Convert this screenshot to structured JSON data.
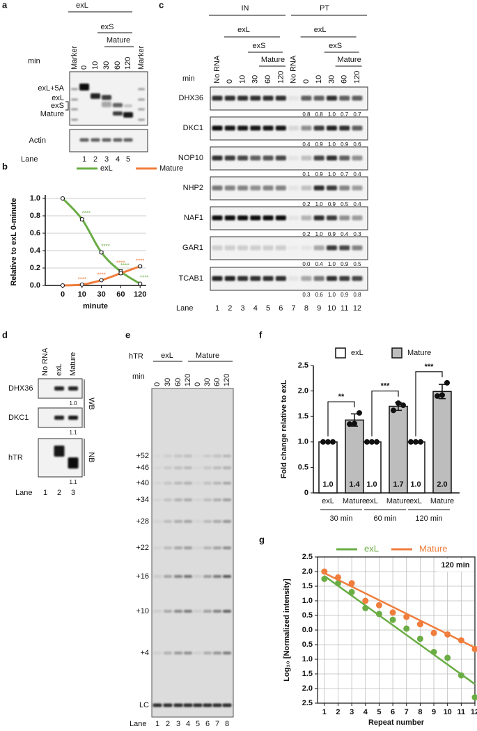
{
  "figure": {
    "labels": [
      "a",
      "b",
      "c",
      "d",
      "e",
      "f",
      "g"
    ]
  },
  "gel_a": {
    "headers": [
      "exL",
      "exS",
      "Mature"
    ],
    "min_label": "min",
    "lanes": [
      "Marker",
      "0",
      "10",
      "30",
      "60",
      "120",
      "Marker"
    ],
    "bands": [
      "exL+5A",
      "exL",
      "exS",
      "Mature"
    ],
    "loading": "Actin",
    "lane_label": "Lane",
    "lane_numbers": [
      1,
      2,
      3,
      4,
      5
    ]
  },
  "gel_c": {
    "groups": [
      "IN",
      "PT"
    ],
    "headers": [
      "exL",
      "exS",
      "Mature"
    ],
    "min_label": "min",
    "lanes": [
      "No RNA",
      "0",
      "10",
      "30",
      "60",
      "120",
      "No RNA",
      "0",
      "10",
      "30",
      "60",
      "120"
    ],
    "blots": [
      {
        "name": "DHX36",
        "quant": [
          "0.8",
          "0.8",
          "1.0",
          "0.7",
          "0.7"
        ]
      },
      {
        "name": "DKC1",
        "quant": [
          "0.4",
          "0.9",
          "1.0",
          "0.9",
          "0.6"
        ]
      },
      {
        "name": "NOP10",
        "quant": [
          "0.1",
          "0.9",
          "1.0",
          "0.7",
          "0.4"
        ]
      },
      {
        "name": "NHP2",
        "quant": [
          "0.2",
          "1.0",
          "0.9",
          "0.5",
          "0.4"
        ]
      },
      {
        "name": "NAF1",
        "quant": [
          "0.2",
          "1.0",
          "0.9",
          "0.4",
          "0.3"
        ]
      },
      {
        "name": "GAR1",
        "quant": [
          "0.0",
          "0.4",
          "1.0",
          "0.9",
          "0.5"
        ]
      },
      {
        "name": "TCAB1",
        "quant": [
          "0.3",
          "0.6",
          "1.0",
          "0.9",
          "0.8"
        ]
      }
    ],
    "lane_label": "Lane",
    "lane_numbers": [
      1,
      2,
      3,
      4,
      5,
      6,
      7,
      8,
      9,
      10,
      11,
      12
    ]
  },
  "gel_d": {
    "lanes": [
      "No RNA",
      "exL",
      "Mature"
    ],
    "blots": [
      {
        "name": "DHX36",
        "quant": "1.0"
      },
      {
        "name": "DKC1",
        "quant": "1.1"
      },
      {
        "name": "hTR",
        "quant": "1.1"
      }
    ],
    "methods": [
      "WB",
      "NB"
    ],
    "lane_label": "Lane",
    "lane_numbers": [
      1,
      2,
      3
    ]
  },
  "gel_e": {
    "rna_label": "hTR",
    "groups": [
      "exL",
      "Mature"
    ],
    "min_label": "min",
    "lanes": [
      "0",
      "30",
      "60",
      "120",
      "0",
      "30",
      "60",
      "120"
    ],
    "repeats": [
      "+52",
      "+46",
      "+40",
      "+34",
      "+28",
      "+22",
      "+16",
      "+10",
      "+4"
    ],
    "loading": "LC",
    "lane_label": "Lane",
    "lane_numbers": [
      1,
      2,
      3,
      4,
      5,
      6,
      7,
      8
    ]
  },
  "chart_data": [
    {
      "type": "line",
      "categories": [
        "0",
        "10",
        "30",
        "60",
        "120"
      ],
      "series": [
        {
          "name": "exL",
          "color": "#6aad45",
          "values": [
            1.0,
            0.76,
            0.38,
            0.16,
            0.02
          ],
          "errors": [
            0.005,
            0.015,
            0.012,
            0.02,
            0.006
          ],
          "significance": [
            null,
            "****",
            "****",
            "****",
            "****"
          ]
        },
        {
          "name": "Mature",
          "color": "#f07d3c",
          "values": [
            0.0,
            0.01,
            0.06,
            0.14,
            0.22
          ],
          "errors": [
            0.003,
            0.005,
            0.008,
            0.015,
            0.01
          ],
          "significance": [
            null,
            "****",
            "****",
            "****",
            "****"
          ]
        }
      ],
      "xlabel": "minute",
      "ylabel": "Relative to exL 0-minute",
      "ylim": [
        0,
        1
      ],
      "yticks": [
        {
          "value": 0,
          "label": "0.0"
        },
        {
          "value": 0.2,
          "label": "0.2"
        },
        {
          "value": 0.4,
          "label": "0.4"
        },
        {
          "value": 0.6,
          "label": "0.6"
        },
        {
          "value": 0.8,
          "label": "0.8"
        },
        {
          "value": 1,
          "label": "1.0"
        }
      ],
      "grid": true,
      "legend": "top"
    },
    {
      "type": "bar",
      "categories": [
        "30 min",
        "60 min",
        "120 min"
      ],
      "series": [
        {
          "name": "exL",
          "color": "#ffffff",
          "values": [
            1,
            1,
            1
          ],
          "value_labels": [
            "1.0",
            "1.0",
            "1.0"
          ],
          "replicates": [
            [
              1,
              1,
              1
            ],
            [
              1,
              1,
              1
            ],
            [
              1,
              1,
              1
            ]
          ]
        },
        {
          "name": "Mature",
          "color": "#bdbdbd",
          "values": [
            1.43,
            1.7,
            1.99
          ],
          "value_labels": [
            "1.4",
            "1.7",
            "2.0"
          ],
          "errors": [
            0.12,
            0.08,
            0.14
          ],
          "replicates": [
            [
              1.35,
              1.36,
              1.57
            ],
            [
              1.62,
              1.76,
              1.72
            ],
            [
              1.9,
              1.92,
              2.16
            ]
          ]
        }
      ],
      "significance": [
        "**",
        "***",
        "***"
      ],
      "ylabel": "Fold change relative to exL",
      "ylim": [
        0,
        2.5
      ],
      "yticks": [
        0,
        0.5,
        {
          "value": 1,
          "label": "1.0"
        },
        1.5,
        {
          "value": 2,
          "label": "2.0"
        },
        2.5
      ],
      "legend": "top"
    },
    {
      "type": "scatter",
      "series": [
        {
          "name": "exL",
          "color": "#6aad45",
          "x": [
            1,
            2,
            3,
            4,
            5,
            6,
            7,
            8,
            9,
            10,
            11,
            12
          ],
          "values": [
            1.75,
            1.6,
            1.3,
            0.75,
            0.55,
            0.35,
            0.05,
            -0.3,
            -0.75,
            -0.95,
            -1.55,
            -2.3
          ],
          "fit": {
            "x": [
              1,
              12
            ],
            "values": [
              1.85,
              -1.85
            ]
          }
        },
        {
          "name": "Mature",
          "color": "#f07d3c",
          "x": [
            1,
            2,
            3,
            4,
            5,
            6,
            7,
            8,
            9,
            10,
            11,
            12
          ],
          "values": [
            2.0,
            1.8,
            1.6,
            1.0,
            0.85,
            0.6,
            0.45,
            0.2,
            -0.1,
            -0.15,
            -0.35,
            -0.65
          ],
          "fit": {
            "x": [
              1,
              12
            ],
            "values": [
              1.95,
              -0.6
            ]
          }
        }
      ],
      "annotation": "120 min",
      "xlabel": "Repeat number",
      "ylabel": "Log₁₀ [Normalized intensity]",
      "xlim": [
        0.5,
        12
      ],
      "xticks": [
        1,
        2,
        3,
        4,
        5,
        6,
        7,
        8,
        9,
        10,
        11,
        12
      ],
      "ylim": [
        -2.5,
        2.5
      ],
      "yticks": [
        {
          "value": 2.5,
          "label": "2.5"
        },
        {
          "value": 2,
          "label": "2.0"
        },
        {
          "value": 1.5,
          "label": "1.5"
        },
        {
          "value": 1,
          "label": "1.0"
        },
        {
          "value": 0.5,
          "label": "0.5"
        },
        {
          "value": 0,
          "label": "0.0"
        },
        {
          "value": -0.5,
          "label": "0.5"
        },
        {
          "value": -1,
          "label": "1.0"
        },
        {
          "value": -1.5,
          "label": "1.5"
        },
        {
          "value": -2,
          "label": "2.0"
        },
        {
          "value": -2.5,
          "label": "2.5"
        }
      ],
      "grid": true,
      "legend": "top"
    }
  ]
}
